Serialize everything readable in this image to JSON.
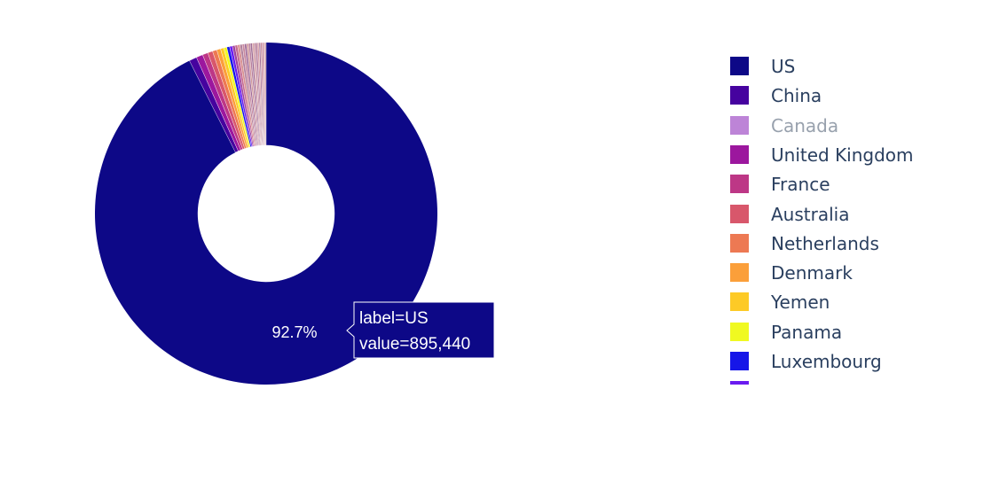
{
  "chart_data": {
    "type": "pie",
    "hole": 0.4,
    "slices": [
      {
        "label": "US",
        "value": 895440,
        "color": "#0d0887",
        "hidden": false
      },
      {
        "label": "China",
        "value": 7000,
        "color": "#46039f",
        "hidden": false
      },
      {
        "label": "Canada",
        "value": 0,
        "color": "#bd84d7",
        "hidden": true
      },
      {
        "label": "United Kingdom",
        "value": 6000,
        "color": "#9c179e",
        "hidden": false
      },
      {
        "label": "France",
        "value": 5000,
        "color": "#bd3786",
        "hidden": false
      },
      {
        "label": "Australia",
        "value": 4500,
        "color": "#d8576b",
        "hidden": false
      },
      {
        "label": "Netherlands",
        "value": 4000,
        "color": "#ed7953",
        "hidden": false
      },
      {
        "label": "Denmark",
        "value": 3500,
        "color": "#fb9f3a",
        "hidden": false
      },
      {
        "label": "Yemen",
        "value": 3000,
        "color": "#fdca26",
        "hidden": false
      },
      {
        "label": "Panama",
        "value": 2800,
        "color": "#f0f921",
        "hidden": false
      },
      {
        "label": "Luxembourg",
        "value": 2600,
        "color": "#1616e8",
        "hidden": false
      },
      {
        "label": "",
        "value": 2500,
        "color": "#6a1bf0",
        "hidden": false
      },
      {
        "label": "",
        "value": 2400,
        "color": "#a0449c",
        "hidden": false
      },
      {
        "label": "",
        "value": 2300,
        "color": "#c66a90",
        "hidden": false
      },
      {
        "label": "",
        "value": 2200,
        "color": "#d89090",
        "hidden": false
      },
      {
        "label": "",
        "value": 2100,
        "color": "#b0809c",
        "hidden": false
      },
      {
        "label": "",
        "value": 2000,
        "color": "#c98aa0",
        "hidden": false
      },
      {
        "label": "",
        "value": 1900,
        "color": "#a06a98",
        "hidden": false
      },
      {
        "label": "",
        "value": 1800,
        "color": "#d29a9a",
        "hidden": false
      },
      {
        "label": "",
        "value": 1700,
        "color": "#b87f9e",
        "hidden": false
      },
      {
        "label": "",
        "value": 1650,
        "color": "#9f6d95",
        "hidden": false
      },
      {
        "label": "",
        "value": 1600,
        "color": "#d7a0a4",
        "hidden": false
      },
      {
        "label": "",
        "value": 1550,
        "color": "#c08aa0",
        "hidden": false
      },
      {
        "label": "",
        "value": 1500,
        "color": "#b17596",
        "hidden": false
      },
      {
        "label": "",
        "value": 1450,
        "color": "#d69aa0",
        "hidden": false
      },
      {
        "label": "",
        "value": 1400,
        "color": "#a4759a",
        "hidden": false
      },
      {
        "label": "",
        "value": 1350,
        "color": "#c98e9c",
        "hidden": false
      },
      {
        "label": "",
        "value": 1300,
        "color": "#bb7c98",
        "hidden": false
      },
      {
        "label": "",
        "value": 1250,
        "color": "#d9a2a2",
        "hidden": false
      },
      {
        "label": "",
        "value": 1200,
        "color": "#b98ea0",
        "hidden": false
      }
    ],
    "slice_text": "92.7%",
    "hover": {
      "label_line": "label=US",
      "value_line": "value=895,440"
    }
  }
}
